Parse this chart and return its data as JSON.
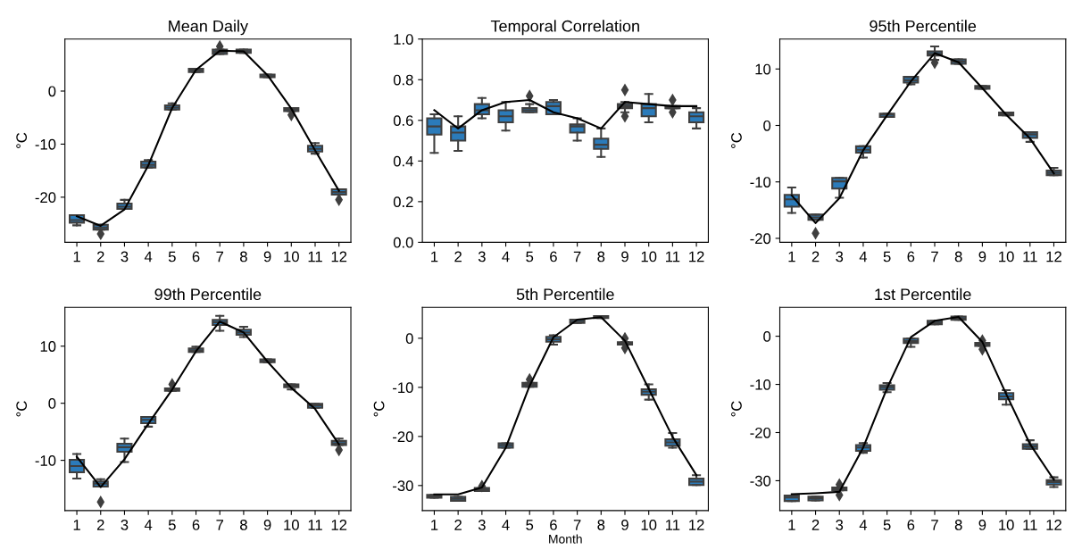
{
  "chart_data": [
    {
      "type": "box",
      "title": "Mean Daily",
      "ylabel": "°C",
      "ylim": [
        -28.5,
        9.8
      ],
      "yticks": [
        -20,
        -10,
        0
      ],
      "categories": [
        "1",
        "2",
        "3",
        "4",
        "5",
        "6",
        "7",
        "8",
        "9",
        "10",
        "11",
        "12"
      ],
      "series": [
        {
          "color": "#2b7bba",
          "boxes": [
            {
              "low": -25.3,
              "q1": -24.8,
              "median": -24.3,
              "q3": -23.4,
              "high": -23.4
            },
            {
              "low": -26.1,
              "q1": -26.1,
              "median": -25.7,
              "q3": -25.2,
              "high": -25.2,
              "outliers": [
                -26.9
              ]
            },
            {
              "low": -22.2,
              "q1": -22.2,
              "median": -21.8,
              "q3": -21.2,
              "high": -20.5
            },
            {
              "low": -14.4,
              "q1": -14.4,
              "median": -13.9,
              "q3": -13.3,
              "high": -13.0
            },
            {
              "low": -3.5,
              "q1": -3.5,
              "median": -3.1,
              "q3": -2.7,
              "high": -2.3
            },
            {
              "low": 3.6,
              "q1": 3.6,
              "median": 3.9,
              "q3": 4.2,
              "high": 4.2
            },
            {
              "low": 7.0,
              "q1": 7.0,
              "median": 7.4,
              "q3": 7.8,
              "high": 7.8,
              "outliers": [
                8.4
              ]
            },
            {
              "low": 7.2,
              "q1": 7.2,
              "median": 7.5,
              "q3": 7.8,
              "high": 7.8
            },
            {
              "low": 2.6,
              "q1": 2.6,
              "median": 2.8,
              "q3": 3.1,
              "high": 3.1
            },
            {
              "low": -3.8,
              "q1": -3.8,
              "median": -3.5,
              "q3": -3.2,
              "high": -3.2,
              "outliers": [
                -4.5
              ]
            },
            {
              "low": -11.8,
              "q1": -11.4,
              "median": -10.9,
              "q3": -10.3,
              "high": -9.8
            },
            {
              "low": -19.5,
              "q1": -19.5,
              "median": -19.0,
              "q3": -18.5,
              "high": -18.5,
              "outliers": [
                -20.5
              ]
            }
          ]
        },
        {
          "type": "line",
          "color": "#000000",
          "values": [
            -23.6,
            -25.4,
            -22.3,
            -14.0,
            -3.2,
            4.0,
            7.6,
            7.5,
            3.0,
            -3.3,
            -11.2,
            -18.8
          ]
        }
      ]
    },
    {
      "type": "box",
      "title": "Temporal Correlation",
      "ylim": [
        0,
        1
      ],
      "yticks": [
        {
          "value": 0,
          "label": "0.0"
        },
        0.2,
        0.4,
        0.6,
        0.8,
        {
          "value": 1,
          "label": "1.0"
        }
      ],
      "categories": [
        "1",
        "2",
        "3",
        "4",
        "5",
        "6",
        "7",
        "8",
        "9",
        "10",
        "11",
        "12"
      ],
      "series": [
        {
          "color": "#2b7bba",
          "boxes": [
            {
              "low": 0.44,
              "q1": 0.53,
              "median": 0.57,
              "q3": 0.61,
              "high": 0.63
            },
            {
              "low": 0.45,
              "q1": 0.5,
              "median": 0.54,
              "q3": 0.57,
              "high": 0.62
            },
            {
              "low": 0.61,
              "q1": 0.63,
              "median": 0.65,
              "q3": 0.68,
              "high": 0.71
            },
            {
              "low": 0.55,
              "q1": 0.59,
              "median": 0.62,
              "q3": 0.65,
              "high": 0.69
            },
            {
              "low": 0.64,
              "q1": 0.64,
              "median": 0.65,
              "q3": 0.66,
              "high": 0.68,
              "outliers": [
                0.72
              ]
            },
            {
              "low": 0.63,
              "q1": 0.63,
              "median": 0.67,
              "q3": 0.69,
              "high": 0.7
            },
            {
              "low": 0.5,
              "q1": 0.54,
              "median": 0.57,
              "q3": 0.58,
              "high": 0.61
            },
            {
              "low": 0.42,
              "q1": 0.46,
              "median": 0.48,
              "q3": 0.51,
              "high": 0.56
            },
            {
              "low": 0.64,
              "q1": 0.66,
              "median": 0.67,
              "q3": 0.68,
              "high": 0.69,
              "outliers": [
                0.75,
                0.62
              ]
            },
            {
              "low": 0.59,
              "q1": 0.62,
              "median": 0.66,
              "q3": 0.68,
              "high": 0.73
            },
            {
              "low": 0.66,
              "q1": 0.66,
              "median": 0.66,
              "q3": 0.67,
              "high": 0.67,
              "outliers": [
                0.7,
                0.64
              ]
            },
            {
              "low": 0.56,
              "q1": 0.59,
              "median": 0.62,
              "q3": 0.64,
              "high": 0.66
            }
          ]
        },
        {
          "type": "line",
          "color": "#000000",
          "values": [
            0.65,
            0.56,
            0.65,
            0.69,
            0.7,
            0.64,
            0.61,
            0.56,
            0.69,
            0.68,
            0.67,
            0.67
          ]
        }
      ]
    },
    {
      "type": "box",
      "title": "95th Percentile",
      "ylabel": "°C",
      "ylim": [
        -20.7,
        15.3
      ],
      "yticks": [
        -20,
        -10,
        0,
        10
      ],
      "categories": [
        "1",
        "2",
        "3",
        "4",
        "5",
        "6",
        "7",
        "8",
        "9",
        "10",
        "11",
        "12"
      ],
      "series": [
        {
          "color": "#2b7bba",
          "boxes": [
            {
              "low": -15.5,
              "q1": -14.4,
              "median": -13.1,
              "q3": -12.3,
              "high": -11.0
            },
            {
              "low": -16.7,
              "q1": -16.7,
              "median": -16.3,
              "q3": -15.8,
              "high": -15.8,
              "outliers": [
                -19.1
              ]
            },
            {
              "low": -12.8,
              "q1": -11.2,
              "median": -9.9,
              "q3": -9.3,
              "high": -9.3
            },
            {
              "low": -5.7,
              "q1": -4.8,
              "median": -4.3,
              "q3": -3.7,
              "high": -3.7
            },
            {
              "low": 1.5,
              "q1": 1.5,
              "median": 1.9,
              "q3": 2.1,
              "high": 2.1
            },
            {
              "low": 7.3,
              "q1": 7.6,
              "median": 8.0,
              "q3": 8.6,
              "high": 8.6
            },
            {
              "low": 11.6,
              "q1": 12.4,
              "median": 12.7,
              "q3": 13.1,
              "high": 14.0,
              "outliers": [
                11.1
              ]
            },
            {
              "low": 10.9,
              "q1": 10.9,
              "median": 11.3,
              "q3": 11.7,
              "high": 11.7
            },
            {
              "low": 6.5,
              "q1": 6.5,
              "median": 6.8,
              "q3": 7.0,
              "high": 7.0
            },
            {
              "low": 1.8,
              "q1": 1.8,
              "median": 2.1,
              "q3": 2.3,
              "high": 2.3
            },
            {
              "low": -2.9,
              "q1": -2.2,
              "median": -1.6,
              "q3": -1.2,
              "high": -1.2
            },
            {
              "low": -8.8,
              "q1": -8.8,
              "median": -8.4,
              "q3": -8.0,
              "high": -7.5
            }
          ]
        },
        {
          "type": "line",
          "color": "#000000",
          "values": [
            -12.4,
            -17.3,
            -12.9,
            -4.4,
            1.8,
            7.8,
            12.8,
            11.2,
            6.6,
            1.9,
            -2.3,
            -8.5
          ]
        }
      ]
    },
    {
      "type": "box",
      "title": "99th Percentile",
      "ylabel": "°C",
      "ylim": [
        -18.8,
        16.8
      ],
      "yticks": [
        -10,
        0,
        10
      ],
      "categories": [
        "1",
        "2",
        "3",
        "4",
        "5",
        "6",
        "7",
        "8",
        "9",
        "10",
        "11",
        "12"
      ],
      "series": [
        {
          "color": "#2b7bba",
          "boxes": [
            {
              "low": -13.2,
              "q1": -12.1,
              "median": -11.0,
              "q3": -9.9,
              "high": -8.9
            },
            {
              "low": -14.6,
              "q1": -14.6,
              "median": -14.1,
              "q3": -13.7,
              "high": -13.3,
              "outliers": [
                -17.3
              ]
            },
            {
              "low": -10.3,
              "q1": -8.5,
              "median": -7.7,
              "q3": -7.1,
              "high": -6.2
            },
            {
              "low": -4.1,
              "q1": -3.5,
              "median": -2.9,
              "q3": -2.4,
              "high": -2.4
            },
            {
              "low": 2.2,
              "q1": 2.2,
              "median": 2.4,
              "q3": 2.6,
              "high": 2.6,
              "outliers": [
                3.3
              ]
            },
            {
              "low": 9.0,
              "q1": 9.0,
              "median": 9.3,
              "q3": 9.6,
              "high": 9.9
            },
            {
              "low": 12.7,
              "q1": 13.7,
              "median": 14.2,
              "q3": 14.6,
              "high": 15.3
            },
            {
              "low": 11.6,
              "q1": 12.0,
              "median": 12.4,
              "q3": 12.9,
              "high": 13.4
            },
            {
              "low": 7.2,
              "q1": 7.2,
              "median": 7.4,
              "q3": 7.7,
              "high": 7.7
            },
            {
              "low": 2.4,
              "q1": 2.8,
              "median": 3.1,
              "q3": 3.3,
              "high": 3.3
            },
            {
              "low": -0.8,
              "q1": -0.8,
              "median": -0.35,
              "q3": -0.1,
              "high": -0.1
            },
            {
              "low": -7.3,
              "q1": -7.3,
              "median": -7.0,
              "q3": -6.6,
              "high": -6.2,
              "outliers": [
                -8.2
              ]
            }
          ]
        },
        {
          "type": "line",
          "color": "#000000",
          "values": [
            -9.4,
            -14.7,
            -9.8,
            -3.6,
            2.4,
            9.1,
            14.3,
            12.4,
            7.3,
            2.7,
            -1.0,
            -7.2
          ]
        }
      ]
    },
    {
      "type": "box",
      "title": "5th Percentile",
      "ylabel": "°C",
      "xlabel": "Month",
      "ylim": [
        -35.1,
        6.3
      ],
      "yticks": [
        -30,
        -20,
        -10,
        0
      ],
      "categories": [
        "1",
        "2",
        "3",
        "4",
        "5",
        "6",
        "7",
        "8",
        "9",
        "10",
        "11",
        "12"
      ],
      "series": [
        {
          "color": "#2b7bba",
          "boxes": [
            {
              "low": -32.5,
              "q1": -32.5,
              "median": -32.2,
              "q3": -31.9,
              "high": -31.9
            },
            {
              "low": -33.1,
              "q1": -33.1,
              "median": -32.7,
              "q3": -32.3,
              "high": -32.3
            },
            {
              "low": -31.1,
              "q1": -31.1,
              "median": -30.8,
              "q3": -30.5,
              "high": -30.5,
              "outliers": [
                -30.1
              ]
            },
            {
              "low": -22.3,
              "q1": -22.3,
              "median": -21.8,
              "q3": -21.4,
              "high": -21.4
            },
            {
              "low": -9.9,
              "q1": -9.9,
              "median": -9.5,
              "q3": -9.1,
              "high": -9.1,
              "outliers": [
                -8.4
              ]
            },
            {
              "low": -1.3,
              "q1": -0.7,
              "median": -0.2,
              "q3": 0.3,
              "high": 0.6
            },
            {
              "low": 3.1,
              "q1": 3.1,
              "median": 3.4,
              "q3": 3.8,
              "high": 3.8
            },
            {
              "low": 4.1,
              "q1": 4.1,
              "median": 4.3,
              "q3": 4.5,
              "high": 4.5
            },
            {
              "low": -1.3,
              "q1": -1.3,
              "median": -1.0,
              "q3": -0.8,
              "high": -0.8,
              "outliers": [
                0.0,
                -2.0
              ]
            },
            {
              "low": -12.5,
              "q1": -11.5,
              "median": -10.9,
              "q3": -10.4,
              "high": -9.4
            },
            {
              "low": -22.3,
              "q1": -21.9,
              "median": -21.2,
              "q3": -20.6,
              "high": -19.3
            },
            {
              "low": -29.9,
              "q1": -29.9,
              "median": -29.2,
              "q3": -28.6,
              "high": -27.9
            }
          ]
        },
        {
          "type": "line",
          "color": "#000000",
          "values": [
            -31.8,
            -31.8,
            -30.4,
            -22.3,
            -9.7,
            0.2,
            3.8,
            4.3,
            -0.5,
            -10.3,
            -20.1,
            -27.9
          ]
        }
      ]
    },
    {
      "type": "box",
      "title": "1st Percentile",
      "ylabel": "°C",
      "ylim": [
        -36.2,
        6.0
      ],
      "yticks": [
        -30,
        -20,
        -10,
        0
      ],
      "categories": [
        "1",
        "2",
        "3",
        "4",
        "5",
        "6",
        "7",
        "8",
        "9",
        "10",
        "11",
        "12"
      ],
      "series": [
        {
          "color": "#2b7bba",
          "boxes": [
            {
              "low": -34.2,
              "q1": -34.2,
              "median": -33.5,
              "q3": -33.1,
              "high": -33.1
            },
            {
              "low": -34.1,
              "q1": -34.1,
              "median": -33.6,
              "q3": -33.3,
              "high": -33.3
            },
            {
              "low": -32.0,
              "q1": -32.0,
              "median": -31.7,
              "q3": -31.4,
              "high": -31.4,
              "outliers": [
                -30.8,
                -33.0
              ]
            },
            {
              "low": -24.2,
              "q1": -23.8,
              "median": -23.1,
              "q3": -22.6,
              "high": -22.2
            },
            {
              "low": -11.6,
              "q1": -11.1,
              "median": -10.6,
              "q3": -10.2,
              "high": -9.7
            },
            {
              "low": -2.2,
              "q1": -1.4,
              "median": -1.0,
              "q3": -0.5,
              "high": -0.5
            },
            {
              "low": 2.5,
              "q1": 2.5,
              "median": 2.8,
              "q3": 3.2,
              "high": 3.2
            },
            {
              "low": 3.4,
              "q1": 3.4,
              "median": 3.7,
              "q3": 4.1,
              "high": 4.1
            },
            {
              "low": -2.0,
              "q1": -2.0,
              "median": -1.7,
              "q3": -1.4,
              "high": -1.4,
              "outliers": [
                -0.9,
                -2.7
              ]
            },
            {
              "low": -14.2,
              "q1": -13.1,
              "median": -12.5,
              "q3": -11.8,
              "high": -11.2
            },
            {
              "low": -23.4,
              "q1": -23.4,
              "median": -22.9,
              "q3": -22.4,
              "high": -21.6
            },
            {
              "low": -31.3,
              "q1": -30.8,
              "median": -30.3,
              "q3": -29.9,
              "high": -29.3
            }
          ]
        },
        {
          "type": "line",
          "color": "#000000",
          "values": [
            -32.8,
            -32.6,
            -32.3,
            -23.1,
            -10.8,
            -0.2,
            3.2,
            4.0,
            -1.2,
            -12.0,
            -22.4,
            -29.8
          ]
        }
      ]
    }
  ]
}
